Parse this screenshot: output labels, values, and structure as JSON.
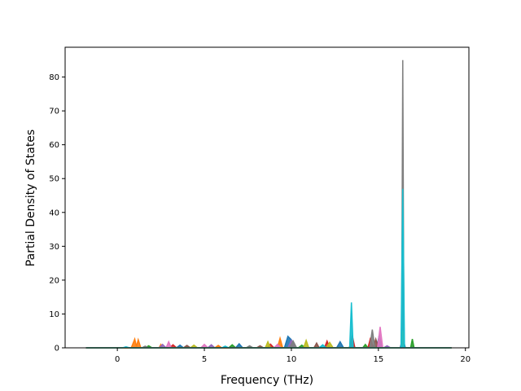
{
  "chart_data": {
    "type": "line",
    "title": "",
    "xlabel": "Frequency (THz)",
    "ylabel": "Partial Density of States",
    "xlim": [
      -3,
      20.2
    ],
    "ylim": [
      0,
      88.8
    ],
    "xticks": [
      "0",
      "5",
      "10",
      "15",
      "20"
    ],
    "yticks": [
      "0",
      "10",
      "20",
      "30",
      "40",
      "50",
      "60",
      "70",
      "80"
    ],
    "grid": false,
    "legend": "none",
    "series": [
      {
        "color": "#1f77b4",
        "points": [
          [
            -1.8,
            0
          ],
          [
            3.4,
            0
          ],
          [
            3.6,
            0.8
          ],
          [
            3.8,
            0
          ],
          [
            6.8,
            0
          ],
          [
            7.0,
            1.2
          ],
          [
            7.2,
            0
          ],
          [
            9.6,
            0
          ],
          [
            9.8,
            3.4
          ],
          [
            10.0,
            2.4
          ],
          [
            10.2,
            0
          ],
          [
            12.6,
            0
          ],
          [
            12.8,
            1.8
          ],
          [
            13.0,
            0
          ],
          [
            14.9,
            0
          ],
          [
            15.05,
            3.8
          ],
          [
            15.2,
            0
          ],
          [
            16.25,
            0
          ],
          [
            16.4,
            3.0
          ],
          [
            16.55,
            0
          ],
          [
            19.2,
            0
          ]
        ]
      },
      {
        "color": "#ff7f0e",
        "points": [
          [
            -1.8,
            0
          ],
          [
            0.8,
            0
          ],
          [
            1.0,
            2.6
          ],
          [
            1.1,
            0.4
          ],
          [
            1.2,
            2.4
          ],
          [
            1.35,
            0
          ],
          [
            2.4,
            0
          ],
          [
            2.5,
            1.0
          ],
          [
            2.6,
            0
          ],
          [
            5.6,
            0
          ],
          [
            5.8,
            0.7
          ],
          [
            6.0,
            0
          ],
          [
            9.2,
            0
          ],
          [
            9.35,
            2.8
          ],
          [
            9.5,
            0
          ],
          [
            13.3,
            0
          ],
          [
            13.45,
            1.2
          ],
          [
            13.6,
            0
          ],
          [
            19.2,
            0
          ]
        ]
      },
      {
        "color": "#2ca02c",
        "points": [
          [
            -1.8,
            0
          ],
          [
            1.6,
            0
          ],
          [
            1.8,
            0.6
          ],
          [
            2.0,
            0
          ],
          [
            6.4,
            0
          ],
          [
            6.6,
            0.9
          ],
          [
            6.8,
            0
          ],
          [
            10.4,
            0
          ],
          [
            10.6,
            0.8
          ],
          [
            10.8,
            0
          ],
          [
            14.1,
            0
          ],
          [
            14.25,
            1.0
          ],
          [
            14.4,
            0
          ],
          [
            16.85,
            0
          ],
          [
            16.95,
            2.6
          ],
          [
            17.05,
            0
          ],
          [
            19.2,
            0
          ]
        ]
      },
      {
        "color": "#d62728",
        "points": [
          [
            -1.8,
            0
          ],
          [
            3.0,
            0
          ],
          [
            3.2,
            0.9
          ],
          [
            3.4,
            0
          ],
          [
            8.6,
            0
          ],
          [
            8.8,
            1.1
          ],
          [
            9.0,
            0
          ],
          [
            11.9,
            0
          ],
          [
            12.05,
            2.0
          ],
          [
            12.2,
            0
          ],
          [
            13.35,
            0
          ],
          [
            13.5,
            3.6
          ],
          [
            13.65,
            0
          ],
          [
            14.4,
            0
          ],
          [
            14.55,
            3.0
          ],
          [
            14.7,
            0
          ],
          [
            16.3,
            0
          ],
          [
            16.4,
            18.8
          ],
          [
            16.5,
            0
          ],
          [
            19.2,
            0
          ]
        ]
      },
      {
        "color": "#9467bd",
        "points": [
          [
            -1.8,
            0
          ],
          [
            2.4,
            0
          ],
          [
            2.6,
            1.0
          ],
          [
            2.8,
            0
          ],
          [
            5.2,
            0
          ],
          [
            5.4,
            0.9
          ],
          [
            5.6,
            0
          ],
          [
            9.8,
            0
          ],
          [
            10.0,
            2.2
          ],
          [
            10.2,
            0
          ],
          [
            15.3,
            0
          ],
          [
            15.5,
            0.6
          ],
          [
            15.7,
            0
          ],
          [
            19.2,
            0
          ]
        ]
      },
      {
        "color": "#8c564b",
        "points": [
          [
            -1.8,
            0
          ],
          [
            3.8,
            0
          ],
          [
            4.0,
            0.7
          ],
          [
            4.2,
            0
          ],
          [
            8.0,
            0
          ],
          [
            8.2,
            0.6
          ],
          [
            8.4,
            0
          ],
          [
            11.3,
            0
          ],
          [
            11.45,
            1.4
          ],
          [
            11.6,
            0
          ],
          [
            14.7,
            0
          ],
          [
            14.85,
            2.6
          ],
          [
            15.0,
            0
          ],
          [
            19.2,
            0
          ]
        ]
      },
      {
        "color": "#e377c2",
        "points": [
          [
            -1.8,
            0
          ],
          [
            2.8,
            0
          ],
          [
            2.95,
            1.8
          ],
          [
            3.1,
            0
          ],
          [
            4.8,
            0
          ],
          [
            5.0,
            1.0
          ],
          [
            5.2,
            0
          ],
          [
            9.0,
            0
          ],
          [
            9.2,
            1.0
          ],
          [
            9.4,
            0
          ],
          [
            14.95,
            0
          ],
          [
            15.1,
            6.2
          ],
          [
            15.25,
            0
          ],
          [
            19.2,
            0
          ]
        ]
      },
      {
        "color": "#7f7f7f",
        "points": [
          [
            -1.8,
            0
          ],
          [
            1.4,
            0
          ],
          [
            1.6,
            0.5
          ],
          [
            1.8,
            0
          ],
          [
            7.4,
            0
          ],
          [
            7.6,
            0.6
          ],
          [
            7.8,
            0
          ],
          [
            9.9,
            0
          ],
          [
            10.1,
            2.0
          ],
          [
            10.3,
            0
          ],
          [
            14.5,
            0
          ],
          [
            14.65,
            5.4
          ],
          [
            14.8,
            0
          ],
          [
            16.33,
            0
          ],
          [
            16.4,
            85.0
          ],
          [
            16.47,
            0
          ],
          [
            19.2,
            0
          ]
        ]
      },
      {
        "color": "#bcbd22",
        "points": [
          [
            -1.8,
            0
          ],
          [
            4.2,
            0
          ],
          [
            4.4,
            0.8
          ],
          [
            4.6,
            0
          ],
          [
            8.5,
            0
          ],
          [
            8.65,
            1.8
          ],
          [
            8.8,
            0
          ],
          [
            10.7,
            0
          ],
          [
            10.85,
            2.2
          ],
          [
            11.0,
            0
          ],
          [
            12.0,
            0
          ],
          [
            12.2,
            1.6
          ],
          [
            12.4,
            0
          ],
          [
            16.3,
            0
          ],
          [
            16.4,
            5.0
          ],
          [
            16.5,
            0
          ],
          [
            19.2,
            0
          ]
        ]
      },
      {
        "color": "#17becf",
        "points": [
          [
            -1.8,
            0
          ],
          [
            0.3,
            0
          ],
          [
            0.5,
            0.3
          ],
          [
            0.7,
            0
          ],
          [
            6.0,
            0
          ],
          [
            6.2,
            0.5
          ],
          [
            6.4,
            0
          ],
          [
            11.6,
            0
          ],
          [
            11.8,
            0.9
          ],
          [
            12.0,
            0
          ],
          [
            13.35,
            0
          ],
          [
            13.45,
            13.4
          ],
          [
            13.55,
            0
          ],
          [
            16.3,
            0
          ],
          [
            16.4,
            47.0
          ],
          [
            16.5,
            0
          ],
          [
            19.2,
            0
          ]
        ]
      }
    ]
  }
}
